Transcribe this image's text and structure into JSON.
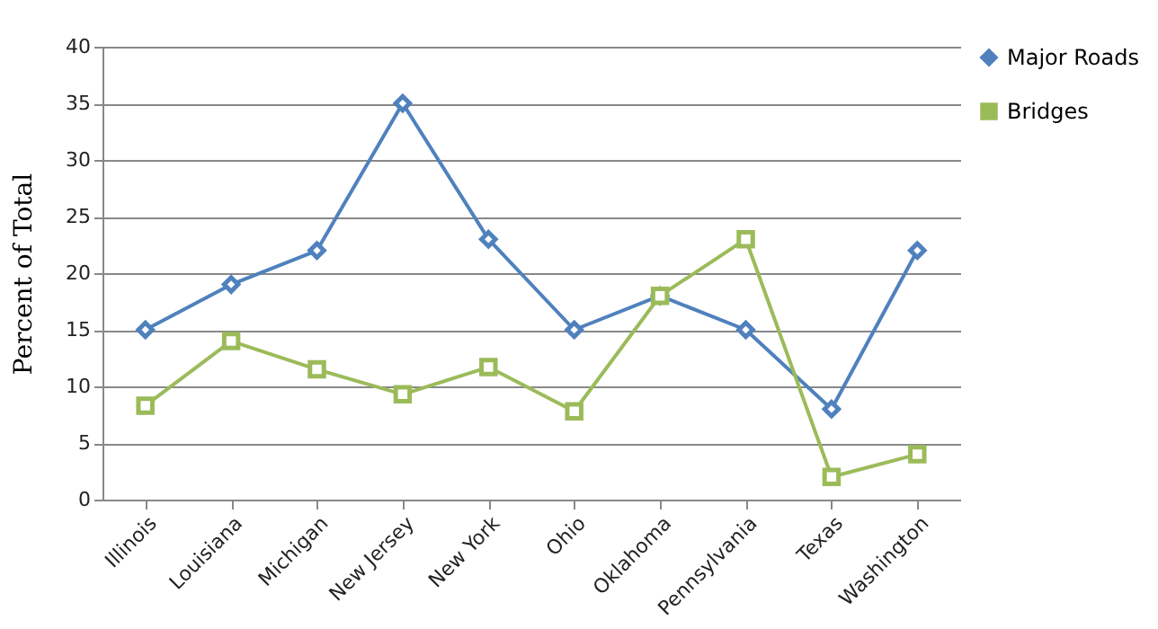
{
  "chart_data": {
    "type": "line",
    "ylabel": "Percent of Total",
    "categories": [
      "Illinois",
      "Louisiana",
      "Michigan",
      "New Jersey",
      "New York",
      "Ohio",
      "Oklahoma",
      "Pennsylvania",
      "Texas",
      "Washington"
    ],
    "series": [
      {
        "name": "Major Roads",
        "color": "#4f81bd",
        "marker": "diamond",
        "values": [
          15,
          19,
          22,
          35,
          23,
          15,
          18,
          15,
          8,
          22
        ]
      },
      {
        "name": "Bridges",
        "color": "#9bbb59",
        "marker": "square",
        "values": [
          8.3,
          14,
          11.5,
          9.3,
          11.7,
          7.8,
          18,
          23,
          2,
          4
        ]
      }
    ],
    "ylim": [
      0,
      40
    ],
    "yticks": [
      0,
      5,
      10,
      15,
      20,
      25,
      30,
      35,
      40
    ],
    "grid": "y",
    "legend": "top right",
    "line_style": "solid"
  }
}
